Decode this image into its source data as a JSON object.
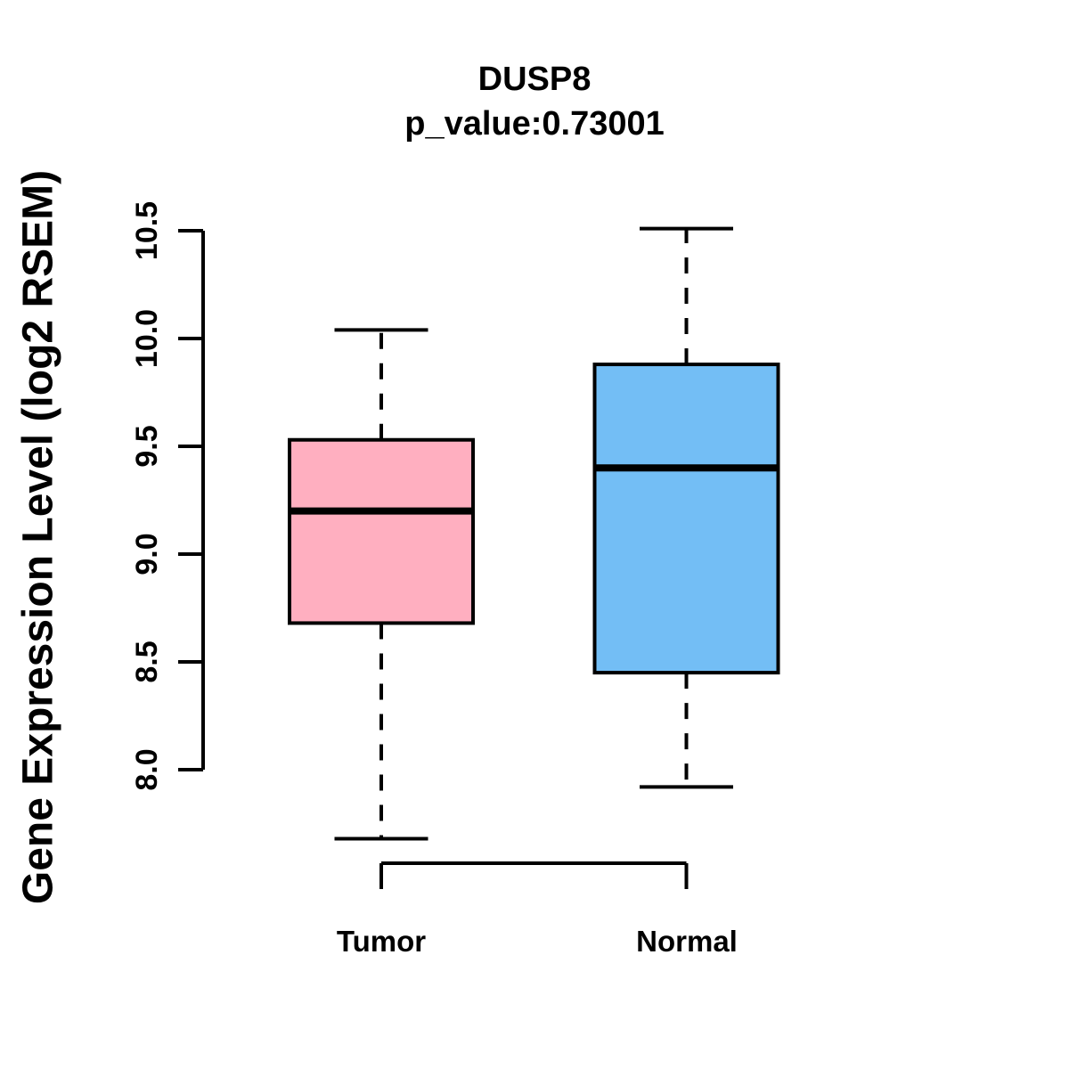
{
  "chart_data": {
    "type": "boxplot",
    "title": "DUSP8",
    "subtitle": "p_value:0.73001",
    "ylabel": "Gene Expression Level (log2 RSEM)",
    "categories": [
      "Tumor",
      "Normal"
    ],
    "yticks": [
      "8.0",
      "8.5",
      "9.0",
      "9.5",
      "10.0",
      "10.5"
    ],
    "axis_range": {
      "min": 8.0,
      "max": 10.5
    },
    "series": [
      {
        "name": "Tumor",
        "lower_whisker": 7.68,
        "q1": 8.68,
        "median": 9.2,
        "q3": 9.53,
        "upper_whisker": 10.04,
        "color": "#FFAFC0"
      },
      {
        "name": "Normal",
        "lower_whisker": 7.92,
        "q1": 8.45,
        "median": 9.4,
        "q3": 9.88,
        "upper_whisker": 10.51,
        "color": "#73BEF5"
      }
    ],
    "stroke_color": "#000000",
    "background": "#FFFFFF",
    "legend": "none",
    "grid": false
  }
}
